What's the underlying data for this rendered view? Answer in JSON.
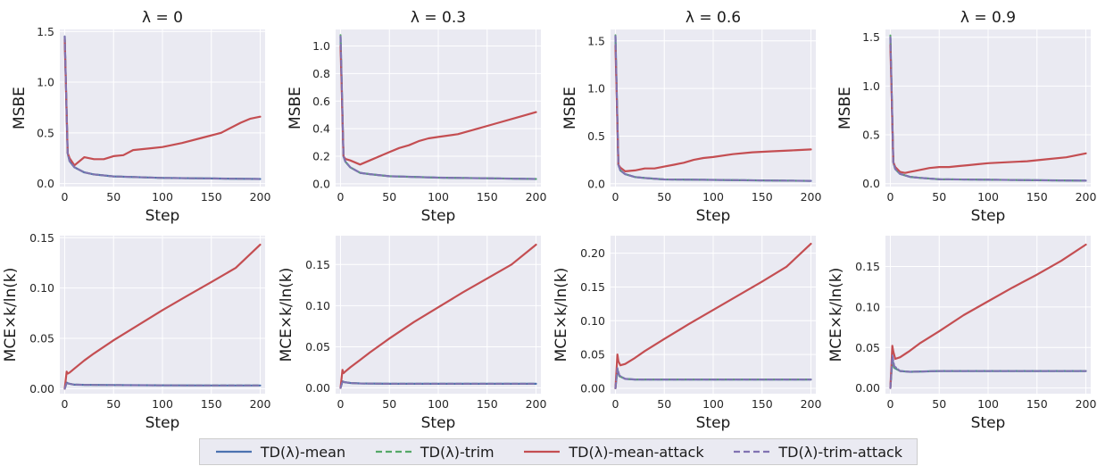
{
  "colors": {
    "mean": "#4c72b0",
    "trim": "#55a868",
    "mean_attack": "#c44e52",
    "trim_attack": "#8172b2",
    "panel_bg": "#eaeaf2",
    "grid": "#ffffff"
  },
  "legend": [
    {
      "key": "mean",
      "label": "TD(λ)-mean",
      "dash": "solid"
    },
    {
      "key": "trim",
      "label": "TD(λ)-trim",
      "dash": "dashed"
    },
    {
      "key": "mean_attack",
      "label": "TD(λ)-mean-attack",
      "dash": "solid"
    },
    {
      "key": "trim_attack",
      "label": "TD(λ)-trim-attack",
      "dash": "dashed"
    }
  ],
  "chart_data": [
    {
      "type": "line",
      "title": "λ = 0",
      "xlabel": "Step",
      "ylabel": "MSBE",
      "xlim": [
        -5,
        205
      ],
      "ylim": [
        -0.03,
        1.52
      ],
      "xticks": [
        "0",
        "50",
        "100",
        "150",
        "200"
      ],
      "yticks": [
        "0.0",
        "0.5",
        "1.0",
        "1.5"
      ],
      "series": [
        {
          "name": "TD(λ)-mean",
          "x": [
            0,
            3,
            5,
            10,
            20,
            30,
            50,
            100,
            150,
            200
          ],
          "y": [
            1.45,
            0.3,
            0.22,
            0.16,
            0.11,
            0.09,
            0.07,
            0.055,
            0.05,
            0.045
          ]
        },
        {
          "name": "TD(λ)-trim",
          "x": [
            0,
            3,
            5,
            10,
            20,
            30,
            50,
            100,
            150,
            200
          ],
          "y": [
            1.45,
            0.3,
            0.22,
            0.16,
            0.11,
            0.09,
            0.07,
            0.055,
            0.05,
            0.045
          ]
        },
        {
          "name": "TD(λ)-mean-attack",
          "x": [
            0,
            3,
            5,
            10,
            20,
            30,
            40,
            50,
            60,
            70,
            80,
            90,
            100,
            120,
            140,
            160,
            180,
            190,
            200
          ],
          "y": [
            1.42,
            0.3,
            0.25,
            0.18,
            0.26,
            0.24,
            0.24,
            0.27,
            0.28,
            0.33,
            0.34,
            0.35,
            0.36,
            0.4,
            0.45,
            0.5,
            0.6,
            0.64,
            0.66
          ]
        },
        {
          "name": "TD(λ)-trim-attack",
          "x": [
            0,
            3,
            5,
            10,
            20,
            30,
            50,
            100,
            150,
            200
          ],
          "y": [
            1.45,
            0.3,
            0.22,
            0.16,
            0.11,
            0.09,
            0.07,
            0.055,
            0.05,
            0.045
          ]
        }
      ]
    },
    {
      "type": "line",
      "title": "λ = 0.3",
      "xlabel": "Step",
      "ylabel": "MSBE",
      "xlim": [
        -5,
        205
      ],
      "ylim": [
        -0.02,
        1.12
      ],
      "xticks": [
        "0",
        "50",
        "100",
        "150",
        "200"
      ],
      "yticks": [
        "0.0",
        "0.2",
        "0.4",
        "0.6",
        "0.8",
        "1.0"
      ],
      "series": [
        {
          "name": "TD(λ)-mean",
          "x": [
            0,
            3,
            5,
            10,
            20,
            30,
            50,
            100,
            150,
            200
          ],
          "y": [
            1.07,
            0.2,
            0.16,
            0.12,
            0.08,
            0.07,
            0.055,
            0.045,
            0.04,
            0.035
          ]
        },
        {
          "name": "TD(λ)-trim",
          "x": [
            0,
            3,
            5,
            10,
            20,
            30,
            50,
            100,
            150,
            200
          ],
          "y": [
            1.08,
            0.2,
            0.16,
            0.12,
            0.08,
            0.07,
            0.055,
            0.045,
            0.04,
            0.035
          ]
        },
        {
          "name": "TD(λ)-mean-attack",
          "x": [
            0,
            3,
            5,
            10,
            20,
            30,
            40,
            50,
            60,
            70,
            80,
            90,
            100,
            120,
            140,
            160,
            180,
            200
          ],
          "y": [
            1.0,
            0.2,
            0.18,
            0.17,
            0.14,
            0.17,
            0.2,
            0.23,
            0.26,
            0.28,
            0.31,
            0.33,
            0.34,
            0.36,
            0.4,
            0.44,
            0.48,
            0.52
          ]
        },
        {
          "name": "TD(λ)-trim-attack",
          "x": [
            0,
            3,
            5,
            10,
            20,
            30,
            50,
            100,
            150,
            200
          ],
          "y": [
            1.07,
            0.2,
            0.16,
            0.12,
            0.08,
            0.07,
            0.055,
            0.045,
            0.04,
            0.035
          ]
        }
      ]
    },
    {
      "type": "line",
      "title": "λ = 0.6",
      "xlabel": "Step",
      "ylabel": "MSBE",
      "xlim": [
        -5,
        205
      ],
      "ylim": [
        -0.03,
        1.62
      ],
      "xticks": [
        "0",
        "50",
        "100",
        "150",
        "200"
      ],
      "yticks": [
        "0.0",
        "0.5",
        "1.0",
        "1.5"
      ],
      "series": [
        {
          "name": "TD(λ)-mean",
          "x": [
            0,
            3,
            5,
            10,
            20,
            30,
            50,
            100,
            150,
            200
          ],
          "y": [
            1.55,
            0.2,
            0.14,
            0.1,
            0.07,
            0.06,
            0.045,
            0.04,
            0.035,
            0.03
          ]
        },
        {
          "name": "TD(λ)-trim",
          "x": [
            0,
            3,
            5,
            10,
            20,
            30,
            50,
            100,
            150,
            200
          ],
          "y": [
            1.56,
            0.2,
            0.14,
            0.1,
            0.07,
            0.06,
            0.045,
            0.04,
            0.035,
            0.03
          ]
        },
        {
          "name": "TD(λ)-mean-attack",
          "x": [
            0,
            3,
            5,
            10,
            20,
            30,
            40,
            50,
            60,
            70,
            80,
            90,
            100,
            120,
            140,
            160,
            180,
            200
          ],
          "y": [
            1.45,
            0.2,
            0.17,
            0.13,
            0.14,
            0.16,
            0.16,
            0.18,
            0.2,
            0.22,
            0.25,
            0.27,
            0.28,
            0.31,
            0.33,
            0.34,
            0.35,
            0.36
          ]
        },
        {
          "name": "TD(λ)-trim-attack",
          "x": [
            0,
            3,
            5,
            10,
            20,
            30,
            50,
            100,
            150,
            200
          ],
          "y": [
            1.55,
            0.2,
            0.14,
            0.1,
            0.07,
            0.06,
            0.045,
            0.04,
            0.035,
            0.03
          ]
        }
      ]
    },
    {
      "type": "line",
      "title": "λ = 0.9",
      "xlabel": "Step",
      "ylabel": "MSBE",
      "xlim": [
        -5,
        205
      ],
      "ylim": [
        -0.03,
        1.58
      ],
      "xticks": [
        "0",
        "50",
        "100",
        "150",
        "200"
      ],
      "yticks": [
        "0.0",
        "0.5",
        "1.0",
        "1.5"
      ],
      "series": [
        {
          "name": "TD(λ)-mean",
          "x": [
            0,
            3,
            5,
            10,
            20,
            30,
            50,
            100,
            150,
            200
          ],
          "y": [
            1.5,
            0.22,
            0.15,
            0.1,
            0.07,
            0.06,
            0.045,
            0.04,
            0.035,
            0.03
          ]
        },
        {
          "name": "TD(λ)-trim",
          "x": [
            0,
            3,
            5,
            10,
            20,
            30,
            50,
            100,
            150,
            200
          ],
          "y": [
            1.52,
            0.22,
            0.15,
            0.1,
            0.07,
            0.06,
            0.045,
            0.04,
            0.035,
            0.03
          ]
        },
        {
          "name": "TD(λ)-mean-attack",
          "x": [
            0,
            3,
            5,
            10,
            15,
            20,
            30,
            40,
            50,
            60,
            70,
            80,
            90,
            100,
            120,
            140,
            160,
            180,
            200
          ],
          "y": [
            1.42,
            0.22,
            0.17,
            0.12,
            0.11,
            0.12,
            0.14,
            0.16,
            0.17,
            0.17,
            0.18,
            0.19,
            0.2,
            0.21,
            0.22,
            0.23,
            0.25,
            0.27,
            0.31
          ]
        },
        {
          "name": "TD(λ)-trim-attack",
          "x": [
            0,
            3,
            5,
            10,
            20,
            30,
            50,
            100,
            150,
            200
          ],
          "y": [
            1.5,
            0.22,
            0.15,
            0.1,
            0.07,
            0.06,
            0.045,
            0.04,
            0.035,
            0.03
          ]
        }
      ]
    },
    {
      "type": "line",
      "title": "",
      "xlabel": "Step",
      "ylabel": "MCE×k/ln(k)",
      "xlim": [
        -5,
        205
      ],
      "ylim": [
        -0.005,
        0.152
      ],
      "xticks": [
        "0",
        "50",
        "100",
        "150",
        "200"
      ],
      "yticks": [
        "0.00",
        "0.05",
        "0.10",
        "0.15"
      ],
      "series": [
        {
          "name": "TD(λ)-mean",
          "x": [
            0,
            2,
            4,
            10,
            20,
            50,
            100,
            150,
            200
          ],
          "y": [
            0.0,
            0.006,
            0.005,
            0.004,
            0.0038,
            0.0035,
            0.0033,
            0.0032,
            0.0032
          ]
        },
        {
          "name": "TD(λ)-trim",
          "x": [
            0,
            2,
            4,
            10,
            20,
            50,
            100,
            150,
            200
          ],
          "y": [
            0.0,
            0.006,
            0.005,
            0.004,
            0.0038,
            0.0035,
            0.0033,
            0.0032,
            0.0032
          ]
        },
        {
          "name": "TD(λ)-mean-attack",
          "x": [
            0,
            2,
            3,
            5,
            10,
            20,
            30,
            50,
            75,
            100,
            125,
            150,
            175,
            200
          ],
          "y": [
            0.0,
            0.017,
            0.015,
            0.016,
            0.02,
            0.028,
            0.035,
            0.048,
            0.063,
            0.078,
            0.092,
            0.106,
            0.12,
            0.143
          ]
        },
        {
          "name": "TD(λ)-trim-attack",
          "x": [
            0,
            2,
            4,
            10,
            20,
            50,
            100,
            150,
            200
          ],
          "y": [
            0.0,
            0.006,
            0.005,
            0.004,
            0.0038,
            0.0035,
            0.0033,
            0.0032,
            0.0032
          ]
        }
      ]
    },
    {
      "type": "line",
      "title": "",
      "xlabel": "Step",
      "ylabel": "MCE×k/ln(k)",
      "xlim": [
        -5,
        205
      ],
      "ylim": [
        -0.007,
        0.185
      ],
      "xticks": [
        "0",
        "50",
        "100",
        "150",
        "200"
      ],
      "yticks": [
        "0.00",
        "0.05",
        "0.10",
        "0.15"
      ],
      "series": [
        {
          "name": "TD(λ)-mean",
          "x": [
            0,
            2,
            4,
            10,
            20,
            50,
            100,
            150,
            200
          ],
          "y": [
            0.0,
            0.008,
            0.007,
            0.006,
            0.0055,
            0.005,
            0.005,
            0.005,
            0.005
          ]
        },
        {
          "name": "TD(λ)-trim",
          "x": [
            0,
            2,
            4,
            10,
            20,
            50,
            100,
            150,
            200
          ],
          "y": [
            0.0,
            0.008,
            0.007,
            0.006,
            0.0055,
            0.005,
            0.005,
            0.005,
            0.005
          ]
        },
        {
          "name": "TD(λ)-mean-attack",
          "x": [
            0,
            2,
            3,
            5,
            10,
            20,
            30,
            50,
            75,
            100,
            125,
            150,
            175,
            200
          ],
          "y": [
            0.0,
            0.022,
            0.018,
            0.02,
            0.025,
            0.034,
            0.043,
            0.06,
            0.08,
            0.098,
            0.116,
            0.133,
            0.15,
            0.174
          ]
        },
        {
          "name": "TD(λ)-trim-attack",
          "x": [
            0,
            2,
            4,
            10,
            20,
            50,
            100,
            150,
            200
          ],
          "y": [
            0.0,
            0.008,
            0.007,
            0.006,
            0.0055,
            0.005,
            0.005,
            0.005,
            0.005
          ]
        }
      ]
    },
    {
      "type": "line",
      "title": "",
      "xlabel": "Step",
      "ylabel": "MCE×k/ln(k)",
      "xlim": [
        -5,
        205
      ],
      "ylim": [
        -0.008,
        0.226
      ],
      "xticks": [
        "0",
        "50",
        "100",
        "150",
        "200"
      ],
      "yticks": [
        "0.00",
        "0.05",
        "0.10",
        "0.15",
        "0.20"
      ],
      "series": [
        {
          "name": "TD(λ)-mean",
          "x": [
            0,
            2,
            4,
            10,
            20,
            50,
            100,
            150,
            200
          ],
          "y": [
            0.0,
            0.028,
            0.018,
            0.014,
            0.013,
            0.013,
            0.013,
            0.013,
            0.013
          ]
        },
        {
          "name": "TD(λ)-trim",
          "x": [
            0,
            2,
            4,
            10,
            20,
            50,
            100,
            150,
            200
          ],
          "y": [
            0.0,
            0.028,
            0.018,
            0.014,
            0.013,
            0.013,
            0.013,
            0.013,
            0.013
          ]
        },
        {
          "name": "TD(λ)-mean-attack",
          "x": [
            0,
            2,
            3,
            5,
            10,
            20,
            30,
            50,
            75,
            100,
            125,
            150,
            175,
            200
          ],
          "y": [
            0.0,
            0.05,
            0.04,
            0.034,
            0.036,
            0.045,
            0.055,
            0.073,
            0.095,
            0.116,
            0.137,
            0.158,
            0.18,
            0.214
          ]
        },
        {
          "name": "TD(λ)-trim-attack",
          "x": [
            0,
            2,
            4,
            10,
            20,
            50,
            100,
            150,
            200
          ],
          "y": [
            0.0,
            0.03,
            0.019,
            0.014,
            0.013,
            0.013,
            0.013,
            0.013,
            0.013
          ]
        }
      ]
    },
    {
      "type": "line",
      "title": "",
      "xlabel": "Step",
      "ylabel": "MCE×k/ln(k)",
      "xlim": [
        -5,
        205
      ],
      "ylim": [
        -0.007,
        0.188
      ],
      "xticks": [
        "0",
        "50",
        "100",
        "150",
        "200"
      ],
      "yticks": [
        "0.00",
        "0.05",
        "0.10",
        "0.15"
      ],
      "series": [
        {
          "name": "TD(λ)-mean",
          "x": [
            0,
            2,
            4,
            10,
            20,
            50,
            100,
            150,
            200
          ],
          "y": [
            0.0,
            0.035,
            0.025,
            0.021,
            0.02,
            0.021,
            0.021,
            0.021,
            0.021
          ]
        },
        {
          "name": "TD(λ)-trim",
          "x": [
            0,
            2,
            4,
            10,
            20,
            50,
            100,
            150,
            200
          ],
          "y": [
            0.0,
            0.035,
            0.025,
            0.021,
            0.02,
            0.021,
            0.021,
            0.021,
            0.021
          ]
        },
        {
          "name": "TD(λ)-mean-attack",
          "x": [
            0,
            2,
            3,
            5,
            10,
            20,
            30,
            50,
            75,
            100,
            125,
            150,
            175,
            200
          ],
          "y": [
            0.0,
            0.052,
            0.045,
            0.036,
            0.038,
            0.046,
            0.055,
            0.07,
            0.09,
            0.107,
            0.124,
            0.14,
            0.157,
            0.177
          ]
        },
        {
          "name": "TD(λ)-trim-attack",
          "x": [
            0,
            2,
            4,
            10,
            20,
            50,
            100,
            150,
            200
          ],
          "y": [
            0.0,
            0.04,
            0.027,
            0.021,
            0.02,
            0.021,
            0.021,
            0.021,
            0.021
          ]
        }
      ]
    }
  ]
}
